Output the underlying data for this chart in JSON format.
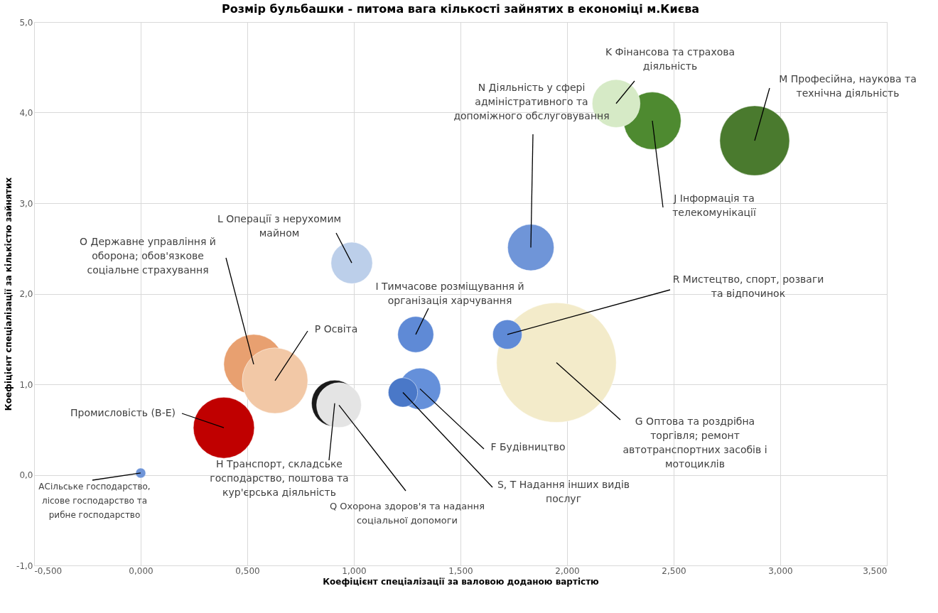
{
  "chart_data": {
    "type": "bubble",
    "title": "Розмір бульбашки - питома вага кількості зайнятих в економіці м.Києва",
    "xlabel": "Коефіцієнт спеціалізації за валовою доданою вартістю",
    "ylabel": "Коефіцієнт спеціалізації за кількістю зайнятих",
    "xlim": [
      -0.5,
      3.5
    ],
    "ylim": [
      -1.0,
      5.0
    ],
    "xticks": [
      {
        "value": -0.5,
        "label": "-0,500"
      },
      {
        "value": 0,
        "label": "0,000"
      },
      {
        "value": 0.5,
        "label": "0,500"
      },
      {
        "value": 1.0,
        "label": "1,000"
      },
      {
        "value": 1.5,
        "label": "1,500"
      },
      {
        "value": 2.0,
        "label": "2,000"
      },
      {
        "value": 2.5,
        "label": "2,500"
      },
      {
        "value": 3.0,
        "label": "3,000"
      },
      {
        "value": 3.5,
        "label": "3,500"
      }
    ],
    "yticks": [
      {
        "value": -1,
        "label": "-1,0"
      },
      {
        "value": 0,
        "label": "0,0"
      },
      {
        "value": 1,
        "label": "1,0"
      },
      {
        "value": 2,
        "label": "2,0"
      },
      {
        "value": 3,
        "label": "3,0"
      },
      {
        "value": 4,
        "label": "4,0"
      },
      {
        "value": 5,
        "label": "5,0"
      }
    ],
    "grid": true,
    "legend": false,
    "series": [
      {
        "name": "АСільське господарство, лісове господарство та рибне господарство",
        "color": "#6f95d8",
        "x": [
          0.0
        ],
        "values": [
          0.02
        ],
        "sizes": [
          0.007
        ]
      },
      {
        "name": "Промисловість (B-E)",
        "color": "#c00000",
        "x": [
          0.39
        ],
        "values": [
          0.52
        ],
        "sizes": [
          0.26
        ]
      },
      {
        "name": "О Державне управління й оборона; обов'язкове соціальне страхування",
        "color": "#e8a070",
        "x": [
          0.53
        ],
        "values": [
          1.22
        ],
        "sizes": [
          0.25
        ]
      },
      {
        "name": "Р Освіта",
        "color": "#f2c8a6",
        "x": [
          0.63
        ],
        "values": [
          1.04
        ],
        "sizes": [
          0.3
        ]
      },
      {
        "name": "Н Транспорт, складське господарство, поштова та кур'єрська діяльність",
        "color": "#1a1a1a",
        "x": [
          0.91
        ],
        "values": [
          0.79
        ],
        "sizes": [
          0.15
        ]
      },
      {
        "name": "Q Охорона здоров'я та надання соціальної допомоги",
        "color": "#e4e4e4",
        "x": [
          0.93
        ],
        "values": [
          0.77
        ],
        "sizes": [
          0.14
        ]
      },
      {
        "name": "L Операції з нерухомим майном",
        "color": "#bccfea",
        "x": [
          0.99
        ],
        "values": [
          2.34
        ],
        "sizes": [
          0.12
        ]
      },
      {
        "name": "І Тимчасове розміщування й організація харчування",
        "color": "#5f8ad6",
        "x": [
          1.29
        ],
        "values": [
          1.55
        ],
        "sizes": [
          0.09
        ]
      },
      {
        "name": "F Будівництво",
        "color": "#6590da",
        "x": [
          1.31
        ],
        "values": [
          0.95
        ],
        "sizes": [
          0.12
        ]
      },
      {
        "name": "S, T Надання інших видів послуг",
        "color": "#4a78c8",
        "x": [
          1.23
        ],
        "values": [
          0.91
        ],
        "sizes": [
          0.06
        ]
      },
      {
        "name": "N Діяльність у сфері адміністративного та допоміжного обслуговування",
        "color": "#6f95d8",
        "x": [
          1.83
        ],
        "values": [
          2.51
        ],
        "sizes": [
          0.15
        ]
      },
      {
        "name": "G Оптова та роздрібна торгівля; ремонт автотранспортних засобів і мотоциклів",
        "color": "#f3ebca",
        "x": [
          1.95
        ],
        "values": [
          1.24
        ],
        "sizes": [
          1.0
        ]
      },
      {
        "name": "R Мистецтво, спорт, розваги та відпочинок",
        "color": "#5f8ad6",
        "x": [
          1.72
        ],
        "values": [
          1.55
        ],
        "sizes": [
          0.06
        ]
      },
      {
        "name": "J Інформація та телекомунікації",
        "color": "#4e8a30",
        "x": [
          2.4
        ],
        "values": [
          3.91
        ],
        "sizes": [
          0.23
        ]
      },
      {
        "name": "K Фінансова та страхова діяльність",
        "color": "#d6eac6",
        "x": [
          2.23
        ],
        "values": [
          4.1
        ],
        "sizes": [
          0.16
        ]
      },
      {
        "name": "M Професійна, наукова та технічна діяльність",
        "color": "#4a7a2e",
        "x": [
          2.88
        ],
        "values": [
          3.69
        ],
        "sizes": [
          0.34
        ]
      }
    ]
  }
}
